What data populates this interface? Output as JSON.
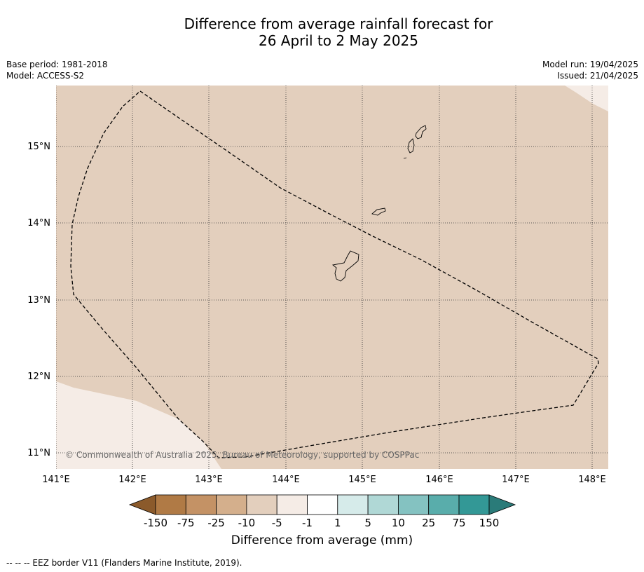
{
  "title_line1": "Difference from average rainfall forecast for",
  "title_line2": "26 April to 2 May 2025",
  "base_period": "Base period: 1981-2018",
  "model": "Model: ACCESS-S2",
  "model_run": "Model run: 19/04/2025",
  "issued": "Issued: 21/04/2025",
  "copyright": "© Commonwealth of Australia 2025, Bureau of Meteorology, supported by COSPPac",
  "lat_labels": [
    "15°N",
    "14°N",
    "13°N",
    "12°N",
    "11°N"
  ],
  "lon_labels": [
    "141°E",
    "142°E",
    "143°E",
    "144°E",
    "145°E",
    "146°E",
    "147°E",
    "148°E"
  ],
  "colorbar": {
    "title": "Difference from average (mm)",
    "tick_labels": [
      "-150",
      "-75",
      "-25",
      "-10",
      "-5",
      "-1",
      "1",
      "5",
      "10",
      "25",
      "75",
      "150"
    ],
    "colors": {
      "lt_-150": "#8b5a2b",
      "-150_-75": "#b07a45",
      "-75_-25": "#c49265",
      "-25_-10": "#d4af8c",
      "-10_-5": "#e3cfbd",
      "-5_-1": "#f5ece6",
      "-1_1": "#ffffff",
      "1_5": "#d6ebea",
      "5_10": "#b0d8d6",
      "10_25": "#84c2c1",
      "25_75": "#59adab",
      "75_150": "#339896",
      "gt_150": "#2a7b79"
    }
  },
  "map_fill_category": "-10_-5",
  "footnote": "--  --  -- EEZ border V11 (Flanders Marine Institute, 2019)."
}
